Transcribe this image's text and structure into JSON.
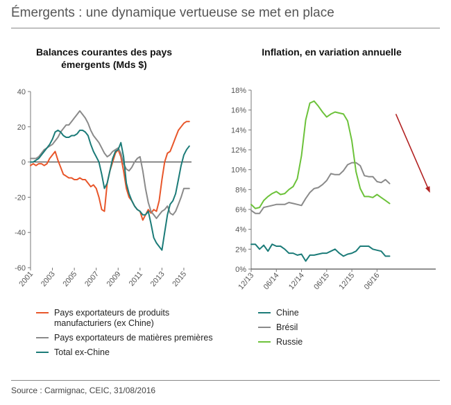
{
  "header": {
    "title": "Émergents : une dynamique vertueuse se met en place"
  },
  "footer": {
    "source": "Source : Carmignac, CEIC, 31/08/2016"
  },
  "colors": {
    "orange": "#e8562a",
    "grey": "#8a8a8a",
    "teal": "#1b7b78",
    "green": "#6cc23a",
    "arrow": "#b22222",
    "axis": "#777777"
  },
  "chart_data": [
    {
      "type": "line",
      "title_lines": [
        "Balances courantes des pays",
        "émergents (Mds $)"
      ],
      "xlabel": "",
      "ylabel": "",
      "xlim": [
        2001,
        2015.7
      ],
      "ylim": [
        -60,
        40
      ],
      "yticks": [
        40,
        20,
        0,
        -20,
        -40,
        -60
      ],
      "xticks": [
        "2001",
        "2003",
        "2005",
        "2007",
        "2009",
        "2011",
        "2013",
        "2015"
      ],
      "xtick_values": [
        2001,
        2003,
        2005,
        2007,
        2009,
        2011,
        2013,
        2015
      ],
      "legend_lines": [
        [
          "Pays exportateurs de produits",
          "manufacturiers (ex Chine)"
        ],
        [
          "Pays exportateurs de matières premières"
        ],
        [
          "Total ex-Chine"
        ]
      ],
      "series": [
        {
          "name": "Pays exportateurs de produits manufacturiers (ex Chine)",
          "color": "orange",
          "x": [
            2001,
            2001.25,
            2001.5,
            2001.75,
            2002,
            2002.25,
            2002.5,
            2002.75,
            2003,
            2003.25,
            2003.5,
            2003.75,
            2004,
            2004.25,
            2004.5,
            2004.75,
            2005,
            2005.25,
            2005.5,
            2005.75,
            2006,
            2006.25,
            2006.5,
            2006.75,
            2007,
            2007.25,
            2007.5,
            2007.75,
            2008,
            2008.25,
            2008.5,
            2008.75,
            2009,
            2009.25,
            2009.5,
            2009.75,
            2010,
            2010.25,
            2010.5,
            2010.75,
            2011,
            2011.25,
            2011.5,
            2011.75,
            2012,
            2012.25,
            2012.5,
            2012.75,
            2013,
            2013.25,
            2013.5,
            2013.75,
            2014,
            2014.25,
            2014.5,
            2014.75,
            2015,
            2015.25,
            2015.5
          ],
          "y": [
            -2,
            -1,
            -2,
            -1,
            -1,
            -2,
            -1,
            2,
            4,
            6,
            1,
            -3,
            -7,
            -8,
            -9,
            -9,
            -10,
            -10,
            -9,
            -10,
            -10,
            -12,
            -14,
            -13,
            -15,
            -20,
            -27,
            -28,
            -12,
            -5,
            0,
            5,
            7,
            3,
            -5,
            -15,
            -20,
            -22,
            -25,
            -27,
            -28,
            -33,
            -30,
            -27,
            -29,
            -27,
            -28,
            -22,
            -10,
            0,
            5,
            6,
            10,
            14,
            18,
            20,
            22,
            23,
            23
          ]
        },
        {
          "name": "Pays exportateurs de matières premières",
          "color": "grey",
          "x": [
            2001,
            2001.25,
            2001.5,
            2001.75,
            2002,
            2002.25,
            2002.5,
            2002.75,
            2003,
            2003.25,
            2003.5,
            2003.75,
            2004,
            2004.25,
            2004.5,
            2004.75,
            2005,
            2005.25,
            2005.5,
            2005.75,
            2006,
            2006.25,
            2006.5,
            2006.75,
            2007,
            2007.25,
            2007.5,
            2007.75,
            2008,
            2008.25,
            2008.5,
            2008.75,
            2009,
            2009.25,
            2009.5,
            2009.75,
            2010,
            2010.25,
            2010.5,
            2010.75,
            2011,
            2011.25,
            2011.5,
            2011.75,
            2012,
            2012.25,
            2012.5,
            2012.75,
            2013,
            2013.25,
            2013.5,
            2013.75,
            2014,
            2014.25,
            2014.5,
            2014.75,
            2015,
            2015.25,
            2015.5
          ],
          "y": [
            2,
            2,
            2,
            3,
            5,
            7,
            8,
            9,
            10,
            12,
            14,
            17,
            19,
            21,
            21,
            23,
            25,
            27,
            29,
            27,
            25,
            22,
            18,
            15,
            13,
            11,
            8,
            5,
            3,
            4,
            6,
            7,
            8,
            5,
            -1,
            -4,
            -5,
            -3,
            0,
            2,
            3,
            -5,
            -15,
            -23,
            -28,
            -30,
            -32,
            -30,
            -28,
            -27,
            -25,
            -29,
            -30,
            -28,
            -24,
            -20,
            -15,
            -15,
            -15
          ]
        },
        {
          "name": "Total ex-Chine",
          "color": "teal",
          "x": [
            2001,
            2001.25,
            2001.5,
            2001.75,
            2002,
            2002.25,
            2002.5,
            2002.75,
            2003,
            2003.25,
            2003.5,
            2003.75,
            2004,
            2004.25,
            2004.5,
            2004.75,
            2005,
            2005.25,
            2005.5,
            2005.75,
            2006,
            2006.25,
            2006.5,
            2006.75,
            2007,
            2007.25,
            2007.5,
            2007.75,
            2008,
            2008.25,
            2008.5,
            2008.75,
            2009,
            2009.25,
            2009.5,
            2009.75,
            2010,
            2010.25,
            2010.5,
            2010.75,
            2011,
            2011.25,
            2011.5,
            2011.75,
            2012,
            2012.25,
            2012.5,
            2012.75,
            2013,
            2013.25,
            2013.5,
            2013.75,
            2014,
            2014.25,
            2014.5,
            2014.75,
            2015,
            2015.25,
            2015.5
          ],
          "y": [
            0,
            0,
            1,
            2,
            4,
            6,
            8,
            10,
            13,
            17,
            18,
            17,
            15,
            14,
            14,
            15,
            15,
            16,
            18,
            18,
            17,
            15,
            10,
            6,
            3,
            0,
            -7,
            -15,
            -12,
            -5,
            2,
            6,
            7,
            11,
            3,
            -12,
            -18,
            -22,
            -25,
            -27,
            -28,
            -30,
            -30,
            -28,
            -35,
            -43,
            -46,
            -48,
            -50,
            -40,
            -30,
            -24,
            -22,
            -18,
            -10,
            -2,
            4,
            7,
            9
          ]
        }
      ]
    },
    {
      "type": "line",
      "title_lines": [
        "Inflation, en variation annuelle"
      ],
      "xlabel": "",
      "ylabel": "",
      "xlim": [
        0,
        44
      ],
      "ylim": [
        0,
        18
      ],
      "yticks": [
        "18%",
        "16%",
        "14%",
        "12%",
        "10%",
        "8%",
        "6%",
        "4%",
        "2%",
        "0%"
      ],
      "ytick_values": [
        18,
        16,
        14,
        12,
        10,
        8,
        6,
        4,
        2,
        0
      ],
      "xticks": [
        "12/13",
        "06/14",
        "12/14",
        "06/15",
        "12/15",
        "06/16"
      ],
      "xtick_values": [
        0,
        6,
        12,
        18,
        24,
        30
      ],
      "x_unit": "months since 12/13",
      "legend_lines": [
        [
          "Chine"
        ],
        [
          "Brésil"
        ],
        [
          "Russie"
        ]
      ],
      "arrow": {
        "from": [
          34.5,
          15.6
        ],
        "to": [
          42.5,
          7.8
        ]
      },
      "series": [
        {
          "name": "Chine",
          "color": "teal",
          "x": [
            0,
            1,
            2,
            3,
            4,
            5,
            6,
            7,
            8,
            9,
            10,
            11,
            12,
            13,
            14,
            15,
            16,
            17,
            18,
            19,
            20,
            21,
            22,
            23,
            24,
            25,
            26,
            27,
            28,
            29,
            30,
            31,
            32,
            33
          ],
          "y": [
            2.5,
            2.5,
            2.0,
            2.4,
            1.8,
            2.5,
            2.3,
            2.3,
            2.0,
            1.6,
            1.6,
            1.4,
            1.5,
            0.8,
            1.4,
            1.4,
            1.5,
            1.6,
            1.6,
            1.8,
            2.0,
            1.6,
            1.3,
            1.5,
            1.6,
            1.8,
            2.3,
            2.3,
            2.3,
            2.0,
            1.9,
            1.8,
            1.3,
            1.3
          ]
        },
        {
          "name": "Brésil",
          "color": "grey",
          "x": [
            0,
            1,
            2,
            3,
            4,
            5,
            6,
            7,
            8,
            9,
            10,
            11,
            12,
            13,
            14,
            15,
            16,
            17,
            18,
            19,
            20,
            21,
            22,
            23,
            24,
            25,
            26,
            27,
            28,
            29,
            30,
            31,
            32,
            33
          ],
          "y": [
            5.9,
            5.6,
            5.6,
            6.2,
            6.3,
            6.4,
            6.5,
            6.5,
            6.5,
            6.7,
            6.6,
            6.5,
            6.4,
            7.1,
            7.7,
            8.1,
            8.2,
            8.5,
            8.9,
            9.6,
            9.5,
            9.5,
            9.9,
            10.5,
            10.7,
            10.7,
            10.4,
            9.4,
            9.3,
            9.3,
            8.8,
            8.7,
            9.0,
            8.6
          ]
        },
        {
          "name": "Russie",
          "color": "green",
          "x": [
            0,
            1,
            2,
            3,
            4,
            5,
            6,
            7,
            8,
            9,
            10,
            11,
            12,
            13,
            14,
            15,
            16,
            17,
            18,
            19,
            20,
            21,
            22,
            23,
            24,
            25,
            26,
            27,
            28,
            29,
            30,
            31,
            32,
            33
          ],
          "y": [
            6.5,
            6.1,
            6.2,
            6.9,
            7.3,
            7.6,
            7.8,
            7.5,
            7.6,
            8.0,
            8.3,
            9.1,
            11.4,
            15.0,
            16.7,
            16.9,
            16.4,
            15.8,
            15.3,
            15.6,
            15.8,
            15.7,
            15.6,
            14.9,
            12.9,
            9.8,
            8.1,
            7.3,
            7.3,
            7.2,
            7.5,
            7.2,
            6.9,
            6.6
          ]
        }
      ]
    }
  ]
}
